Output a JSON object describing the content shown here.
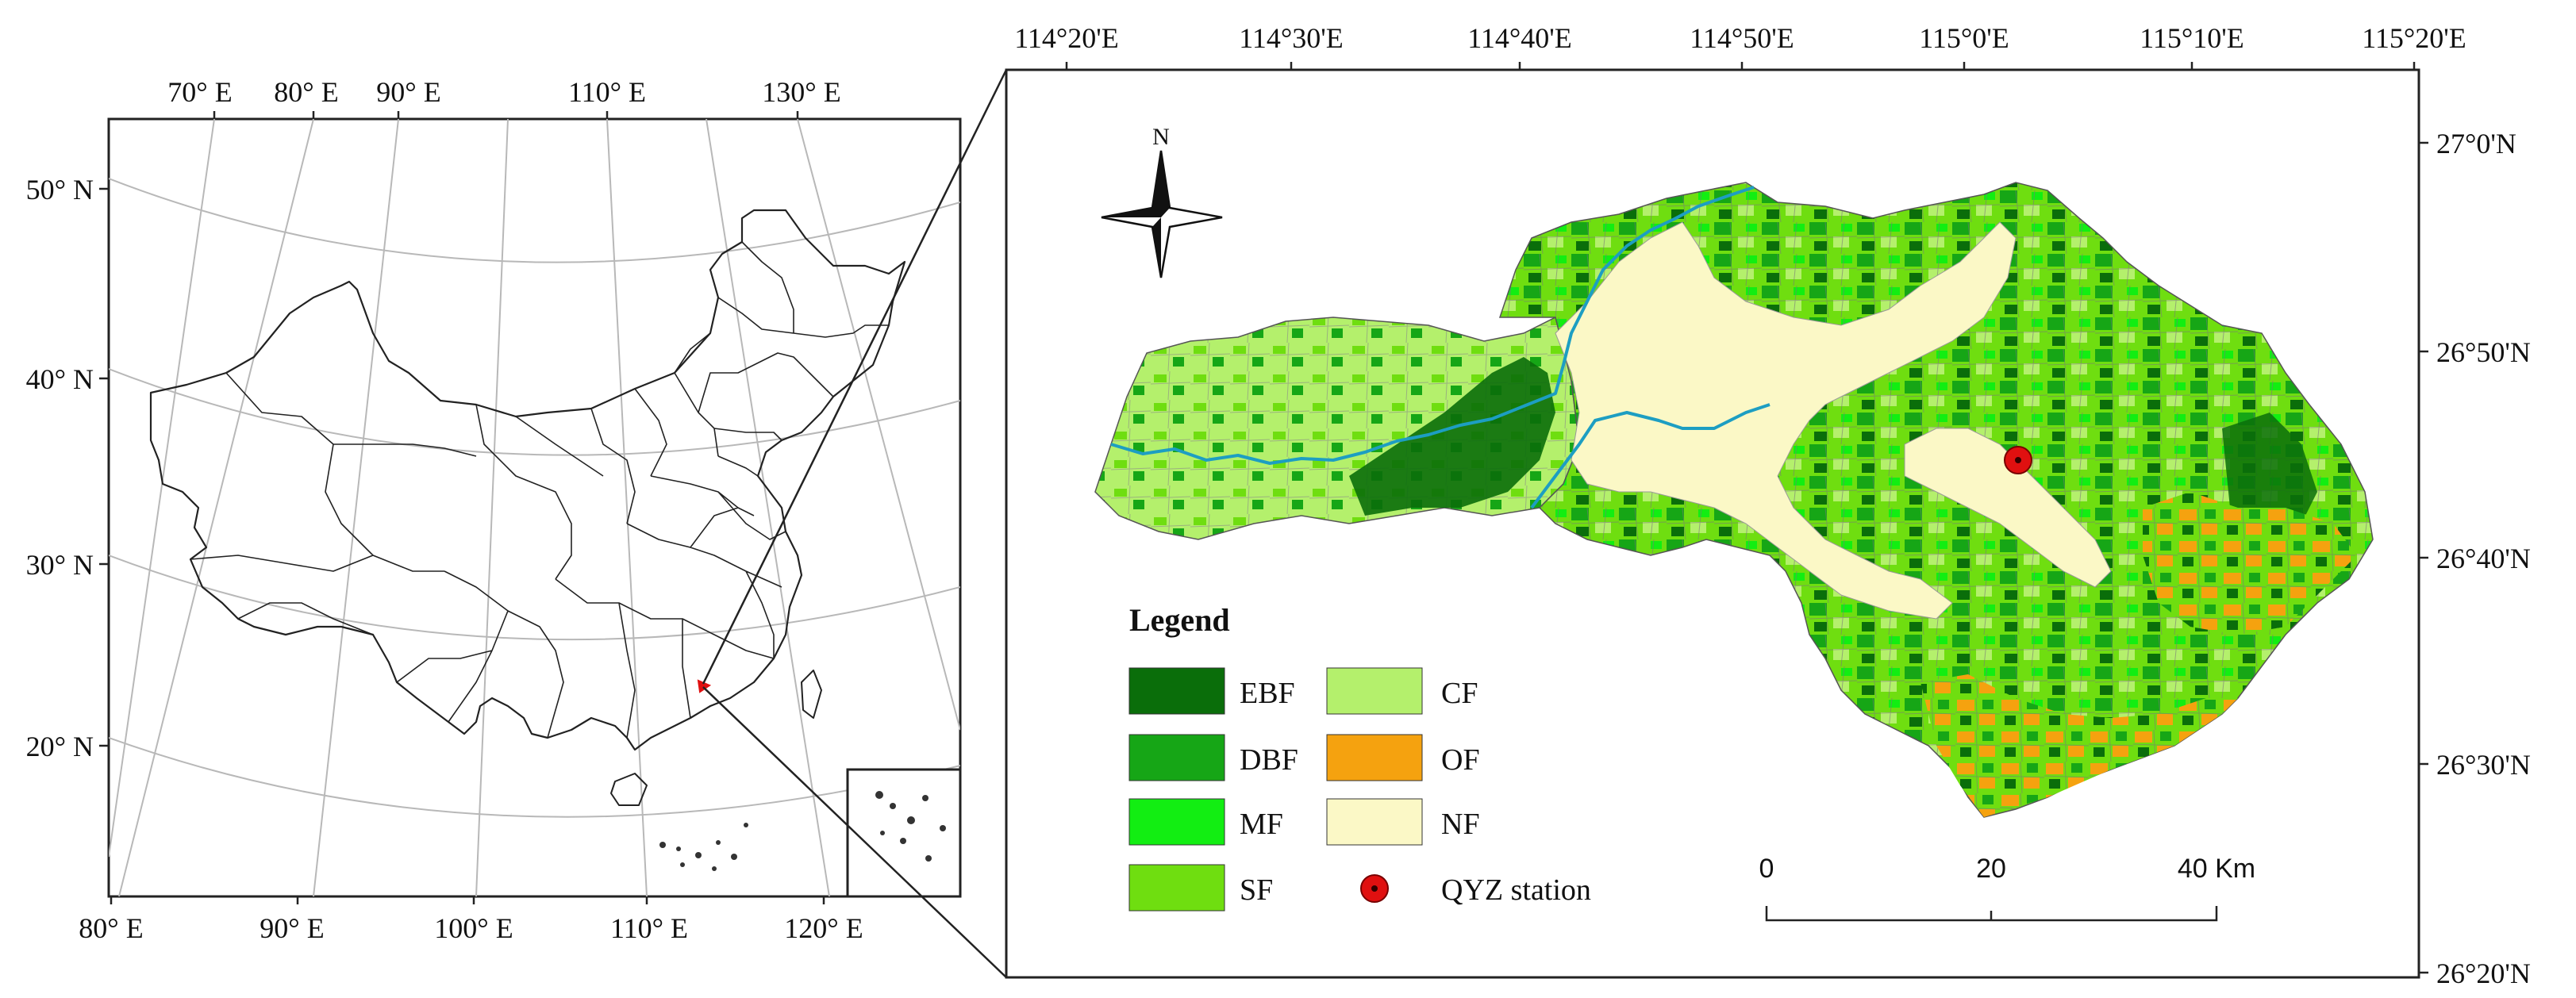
{
  "overview_map": {
    "top_lon_ticks": [
      "70° E",
      "80° E",
      "90° E",
      "110° E",
      "130° E"
    ],
    "bottom_lon_ticks": [
      "80° E",
      "90° E",
      "100° E",
      "110° E",
      "120° E"
    ],
    "lat_ticks": [
      "50° N",
      "40° N",
      "30° N",
      "20° N"
    ]
  },
  "detail_map": {
    "top_lon_ticks": [
      "114°20'E",
      "114°30'E",
      "114°40'E",
      "114°50'E",
      "115°0'E",
      "115°10'E",
      "115°20'E"
    ],
    "right_lat_ticks": [
      "27°0'N",
      "26°50'N",
      "26°40'N",
      "26°30'N",
      "26°20'N"
    ],
    "north_arrow_label": "N",
    "legend": {
      "title": "Legend",
      "items": [
        {
          "code": "EBF",
          "color": "#0a6e0a"
        },
        {
          "code": "DBF",
          "color": "#16a616"
        },
        {
          "code": "MF",
          "color": "#12ee12"
        },
        {
          "code": "SF",
          "color": "#6fde10"
        },
        {
          "code": "CF",
          "color": "#b4f06c"
        },
        {
          "code": "OF",
          "color": "#f5a20f"
        },
        {
          "code": "NF",
          "color": "#fbf8c6"
        }
      ],
      "station_label": "QYZ station",
      "station_color": "#e01010"
    },
    "scale_bar": {
      "ticks": [
        "0",
        "20",
        "40 Km"
      ]
    },
    "river_color": "#1d9ec2"
  }
}
